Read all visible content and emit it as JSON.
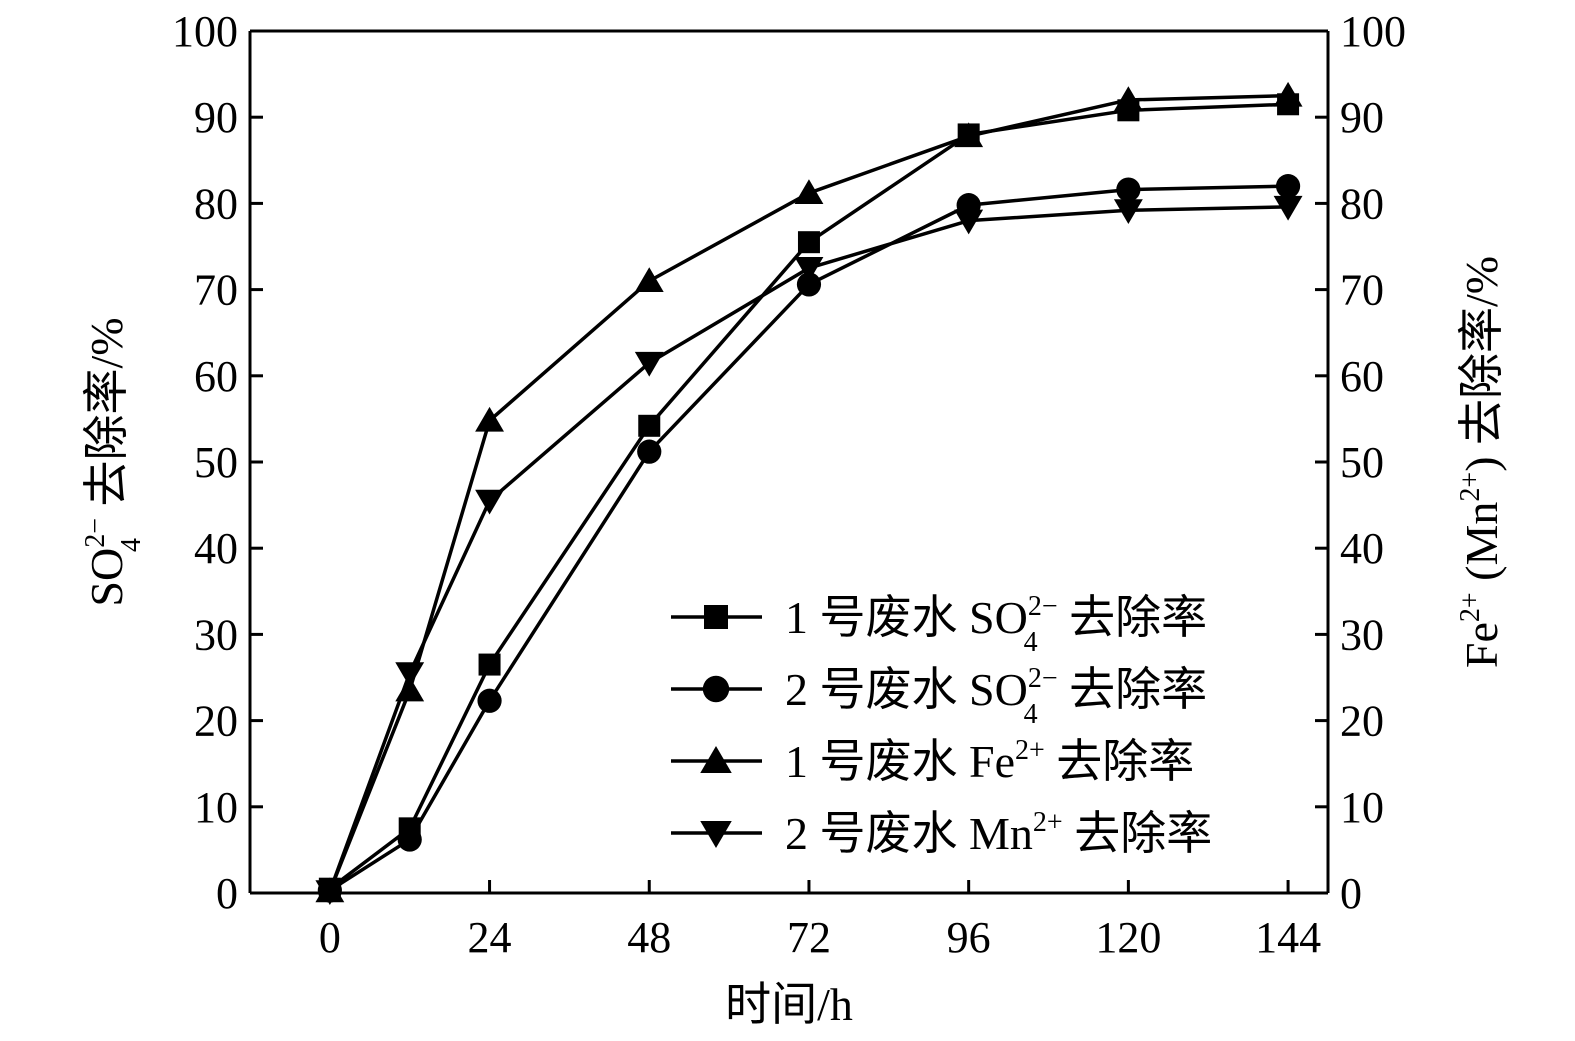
{
  "chart_data": {
    "type": "line",
    "x": [
      0,
      12,
      24,
      48,
      72,
      96,
      120,
      144
    ],
    "x_ticks": [
      "0",
      "24",
      "48",
      "72",
      "96",
      "120",
      "144"
    ],
    "y_ticks": [
      "0",
      "10",
      "20",
      "30",
      "40",
      "50",
      "60",
      "70",
      "80",
      "90",
      "100"
    ],
    "xlim": [
      -12,
      150
    ],
    "ylim": [
      0,
      100
    ],
    "y2lim": [
      0,
      100
    ],
    "grid": false,
    "legend_position": "bottom-right",
    "xlabel": "时间/h",
    "ylabel": {
      "base": "SO",
      "sub": "4",
      "sup": "2−",
      "rest": " 去除率/%"
    },
    "y2label": {
      "prefix": "Fe",
      "sup1": "2+",
      "middle": " (Mn",
      "sup2": "2+",
      "rest": ") 去除率/%"
    },
    "series": [
      {
        "name": "1 号废水 SO42− 去除率",
        "legend": {
          "prefix": "1 号废水 SO",
          "sub": "4",
          "sup": "2−",
          "suffix": " 去除率"
        },
        "marker": "square",
        "axis": "left",
        "values": [
          0.5,
          7.5,
          26.5,
          54.2,
          75.5,
          88.0,
          90.8,
          91.5
        ]
      },
      {
        "name": "2 号废水 SO42− 去除率",
        "legend": {
          "prefix": "2 号废水 SO",
          "sub": "4",
          "sup": "2−",
          "suffix": " 去除率"
        },
        "marker": "circle",
        "axis": "left",
        "values": [
          0.3,
          6.2,
          22.3,
          51.2,
          70.6,
          79.8,
          81.6,
          82.0
        ]
      },
      {
        "name": "1 号废水 Fe2+ 去除率",
        "legend": {
          "prefix": "1 号废水 Fe",
          "sub": "",
          "sup": "2+",
          "suffix": " 去除率"
        },
        "marker": "triangle-up",
        "axis": "right",
        "values": [
          0.2,
          23.5,
          54.8,
          71.0,
          81.2,
          87.8,
          92.0,
          92.5
        ]
      },
      {
        "name": "2 号废水 Mn2+ 去除率",
        "legend": {
          "prefix": "2 号废水 Mn",
          "sub": "",
          "sup": "2+",
          "suffix": " 去除率"
        },
        "marker": "triangle-down",
        "axis": "right",
        "values": [
          0.2,
          25.5,
          45.5,
          61.5,
          72.5,
          78.0,
          79.2,
          79.6
        ]
      }
    ]
  }
}
